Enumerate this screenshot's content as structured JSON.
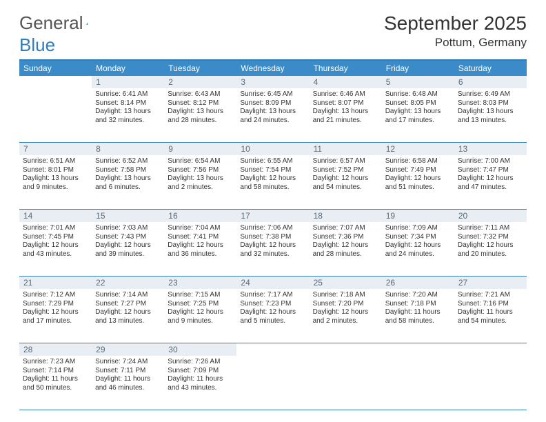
{
  "logo": {
    "text1": "General",
    "text2": "Blue"
  },
  "title": "September 2025",
  "location": "Pottum, Germany",
  "colors": {
    "header_bg": "#3B8BC8",
    "border": "#2F7DBB",
    "daynum_bg": "#E8EEF3",
    "daynum_color": "#5A6A78",
    "text": "#333333",
    "bg": "#ffffff"
  },
  "day_headers": [
    "Sunday",
    "Monday",
    "Tuesday",
    "Wednesday",
    "Thursday",
    "Friday",
    "Saturday"
  ],
  "weeks": [
    [
      null,
      {
        "n": "1",
        "sr": "Sunrise: 6:41 AM",
        "ss": "Sunset: 8:14 PM",
        "dl": "Daylight: 13 hours and 32 minutes."
      },
      {
        "n": "2",
        "sr": "Sunrise: 6:43 AM",
        "ss": "Sunset: 8:12 PM",
        "dl": "Daylight: 13 hours and 28 minutes."
      },
      {
        "n": "3",
        "sr": "Sunrise: 6:45 AM",
        "ss": "Sunset: 8:09 PM",
        "dl": "Daylight: 13 hours and 24 minutes."
      },
      {
        "n": "4",
        "sr": "Sunrise: 6:46 AM",
        "ss": "Sunset: 8:07 PM",
        "dl": "Daylight: 13 hours and 21 minutes."
      },
      {
        "n": "5",
        "sr": "Sunrise: 6:48 AM",
        "ss": "Sunset: 8:05 PM",
        "dl": "Daylight: 13 hours and 17 minutes."
      },
      {
        "n": "6",
        "sr": "Sunrise: 6:49 AM",
        "ss": "Sunset: 8:03 PM",
        "dl": "Daylight: 13 hours and 13 minutes."
      }
    ],
    [
      {
        "n": "7",
        "sr": "Sunrise: 6:51 AM",
        "ss": "Sunset: 8:01 PM",
        "dl": "Daylight: 13 hours and 9 minutes."
      },
      {
        "n": "8",
        "sr": "Sunrise: 6:52 AM",
        "ss": "Sunset: 7:58 PM",
        "dl": "Daylight: 13 hours and 6 minutes."
      },
      {
        "n": "9",
        "sr": "Sunrise: 6:54 AM",
        "ss": "Sunset: 7:56 PM",
        "dl": "Daylight: 13 hours and 2 minutes."
      },
      {
        "n": "10",
        "sr": "Sunrise: 6:55 AM",
        "ss": "Sunset: 7:54 PM",
        "dl": "Daylight: 12 hours and 58 minutes."
      },
      {
        "n": "11",
        "sr": "Sunrise: 6:57 AM",
        "ss": "Sunset: 7:52 PM",
        "dl": "Daylight: 12 hours and 54 minutes."
      },
      {
        "n": "12",
        "sr": "Sunrise: 6:58 AM",
        "ss": "Sunset: 7:49 PM",
        "dl": "Daylight: 12 hours and 51 minutes."
      },
      {
        "n": "13",
        "sr": "Sunrise: 7:00 AM",
        "ss": "Sunset: 7:47 PM",
        "dl": "Daylight: 12 hours and 47 minutes."
      }
    ],
    [
      {
        "n": "14",
        "sr": "Sunrise: 7:01 AM",
        "ss": "Sunset: 7:45 PM",
        "dl": "Daylight: 12 hours and 43 minutes."
      },
      {
        "n": "15",
        "sr": "Sunrise: 7:03 AM",
        "ss": "Sunset: 7:43 PM",
        "dl": "Daylight: 12 hours and 39 minutes."
      },
      {
        "n": "16",
        "sr": "Sunrise: 7:04 AM",
        "ss": "Sunset: 7:41 PM",
        "dl": "Daylight: 12 hours and 36 minutes."
      },
      {
        "n": "17",
        "sr": "Sunrise: 7:06 AM",
        "ss": "Sunset: 7:38 PM",
        "dl": "Daylight: 12 hours and 32 minutes."
      },
      {
        "n": "18",
        "sr": "Sunrise: 7:07 AM",
        "ss": "Sunset: 7:36 PM",
        "dl": "Daylight: 12 hours and 28 minutes."
      },
      {
        "n": "19",
        "sr": "Sunrise: 7:09 AM",
        "ss": "Sunset: 7:34 PM",
        "dl": "Daylight: 12 hours and 24 minutes."
      },
      {
        "n": "20",
        "sr": "Sunrise: 7:11 AM",
        "ss": "Sunset: 7:32 PM",
        "dl": "Daylight: 12 hours and 20 minutes."
      }
    ],
    [
      {
        "n": "21",
        "sr": "Sunrise: 7:12 AM",
        "ss": "Sunset: 7:29 PM",
        "dl": "Daylight: 12 hours and 17 minutes."
      },
      {
        "n": "22",
        "sr": "Sunrise: 7:14 AM",
        "ss": "Sunset: 7:27 PM",
        "dl": "Daylight: 12 hours and 13 minutes."
      },
      {
        "n": "23",
        "sr": "Sunrise: 7:15 AM",
        "ss": "Sunset: 7:25 PM",
        "dl": "Daylight: 12 hours and 9 minutes."
      },
      {
        "n": "24",
        "sr": "Sunrise: 7:17 AM",
        "ss": "Sunset: 7:23 PM",
        "dl": "Daylight: 12 hours and 5 minutes."
      },
      {
        "n": "25",
        "sr": "Sunrise: 7:18 AM",
        "ss": "Sunset: 7:20 PM",
        "dl": "Daylight: 12 hours and 2 minutes."
      },
      {
        "n": "26",
        "sr": "Sunrise: 7:20 AM",
        "ss": "Sunset: 7:18 PM",
        "dl": "Daylight: 11 hours and 58 minutes."
      },
      {
        "n": "27",
        "sr": "Sunrise: 7:21 AM",
        "ss": "Sunset: 7:16 PM",
        "dl": "Daylight: 11 hours and 54 minutes."
      }
    ],
    [
      {
        "n": "28",
        "sr": "Sunrise: 7:23 AM",
        "ss": "Sunset: 7:14 PM",
        "dl": "Daylight: 11 hours and 50 minutes."
      },
      {
        "n": "29",
        "sr": "Sunrise: 7:24 AM",
        "ss": "Sunset: 7:11 PM",
        "dl": "Daylight: 11 hours and 46 minutes."
      },
      {
        "n": "30",
        "sr": "Sunrise: 7:26 AM",
        "ss": "Sunset: 7:09 PM",
        "dl": "Daylight: 11 hours and 43 minutes."
      },
      null,
      null,
      null,
      null
    ]
  ]
}
